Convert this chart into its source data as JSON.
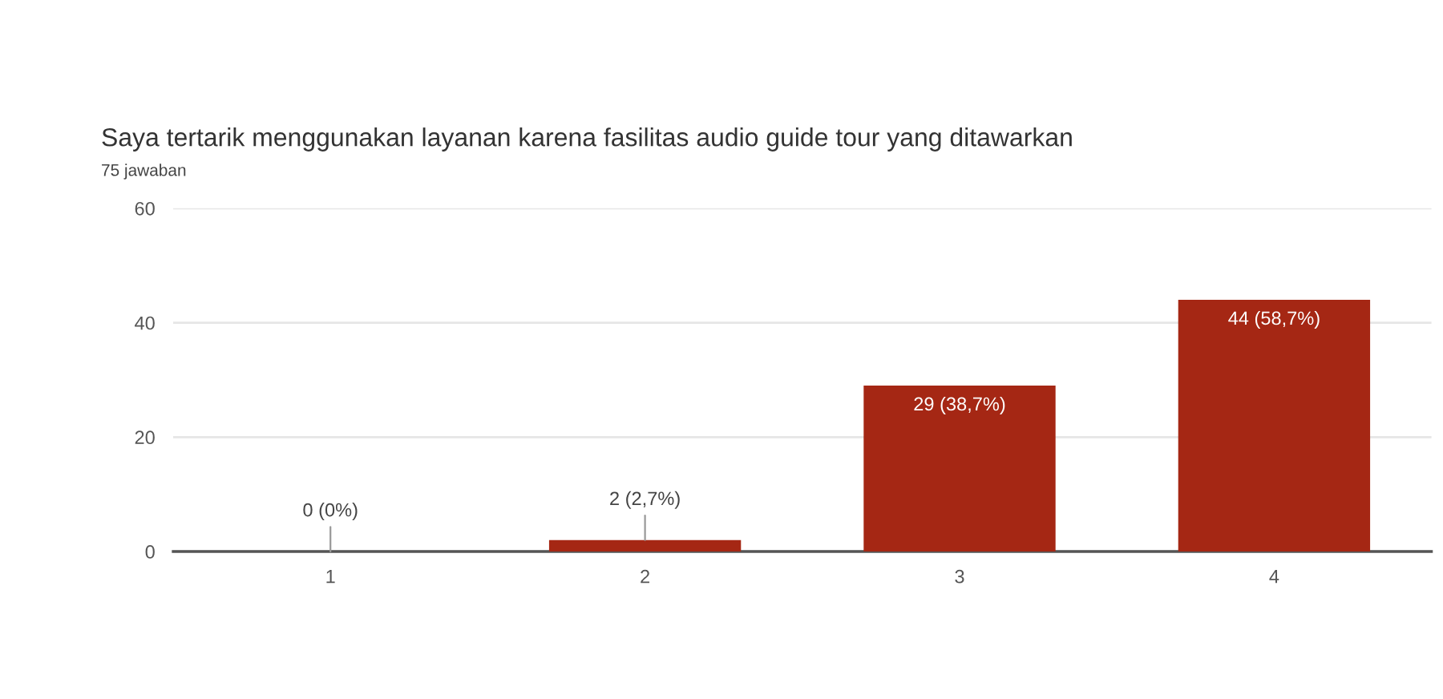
{
  "chart_data": {
    "type": "bar",
    "title": "Saya tertarik menggunakan layanan karena fasilitas audio guide tour yang ditawarkan",
    "subtitle": "75 jawaban",
    "categories": [
      "1",
      "2",
      "3",
      "4"
    ],
    "values": [
      0,
      2,
      29,
      44
    ],
    "color": "#a52714",
    "value_labels": [
      "0 (0%)",
      "2 (2,7%)",
      "29 (38,7%)",
      "44 (58,7%)"
    ],
    "ylim": [
      0,
      60
    ],
    "yticks": [
      0,
      20,
      40,
      60
    ],
    "grid": "y"
  }
}
